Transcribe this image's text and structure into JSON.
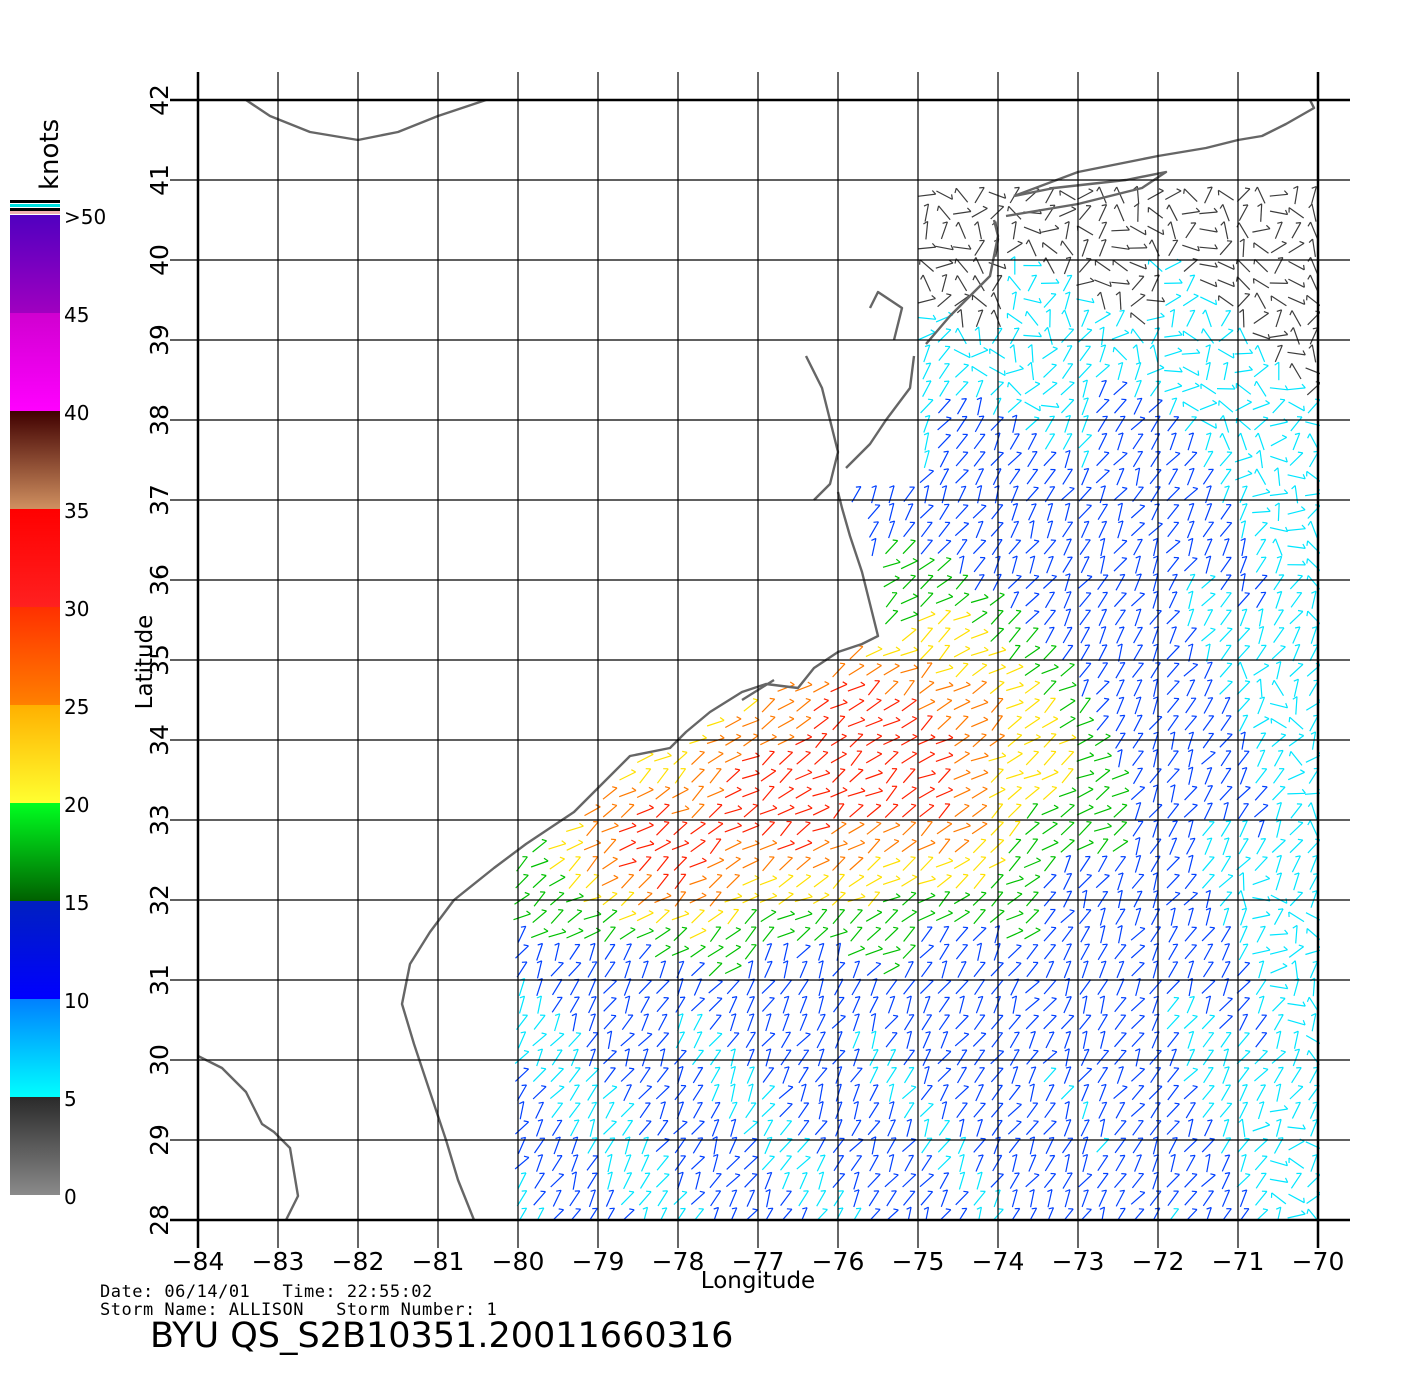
{
  "map": {
    "xlabel": "Longitude",
    "ylabel": "Latitude",
    "lon_ticks": [
      "−84",
      "−83",
      "−82",
      "−81",
      "−80",
      "−79",
      "−78",
      "−77",
      "−76",
      "−75",
      "−74",
      "−73",
      "−72",
      "−71",
      "−70"
    ],
    "lat_ticks": [
      "28",
      "29",
      "30",
      "31",
      "32",
      "33",
      "34",
      "35",
      "36",
      "37",
      "38",
      "39",
      "40",
      "41",
      "42"
    ],
    "lon_range": [
      -84,
      -70
    ],
    "lat_range": [
      28,
      42
    ],
    "coast_color": "#666666",
    "grid_color": "#000000"
  },
  "colorbar": {
    "unit_label": "knots",
    "tick_labels": [
      "0",
      "5",
      "10",
      "15",
      "20",
      "25",
      "30",
      "35",
      "40",
      "45",
      ">50"
    ],
    "colors": {
      "0-5": "#3c3c3c",
      "5-10": "#00e5ff",
      "10-15": "#0040ff",
      "15-20": "#00c000",
      "20-25": "#ffe000",
      "25-30": "#ff7a00",
      "30-35": "#ff2000",
      "35-40": "#8a4020",
      "40-45": "#e800e8",
      "45-50": "#7a00c8"
    }
  },
  "info": {
    "date_line": "Date: 06/14/01   Time: 22:55:02",
    "storm_line": "Storm Name: ALLISON   Storm Number: 1",
    "pass_id": "BYU QS_S2B10351.20011660316"
  }
}
